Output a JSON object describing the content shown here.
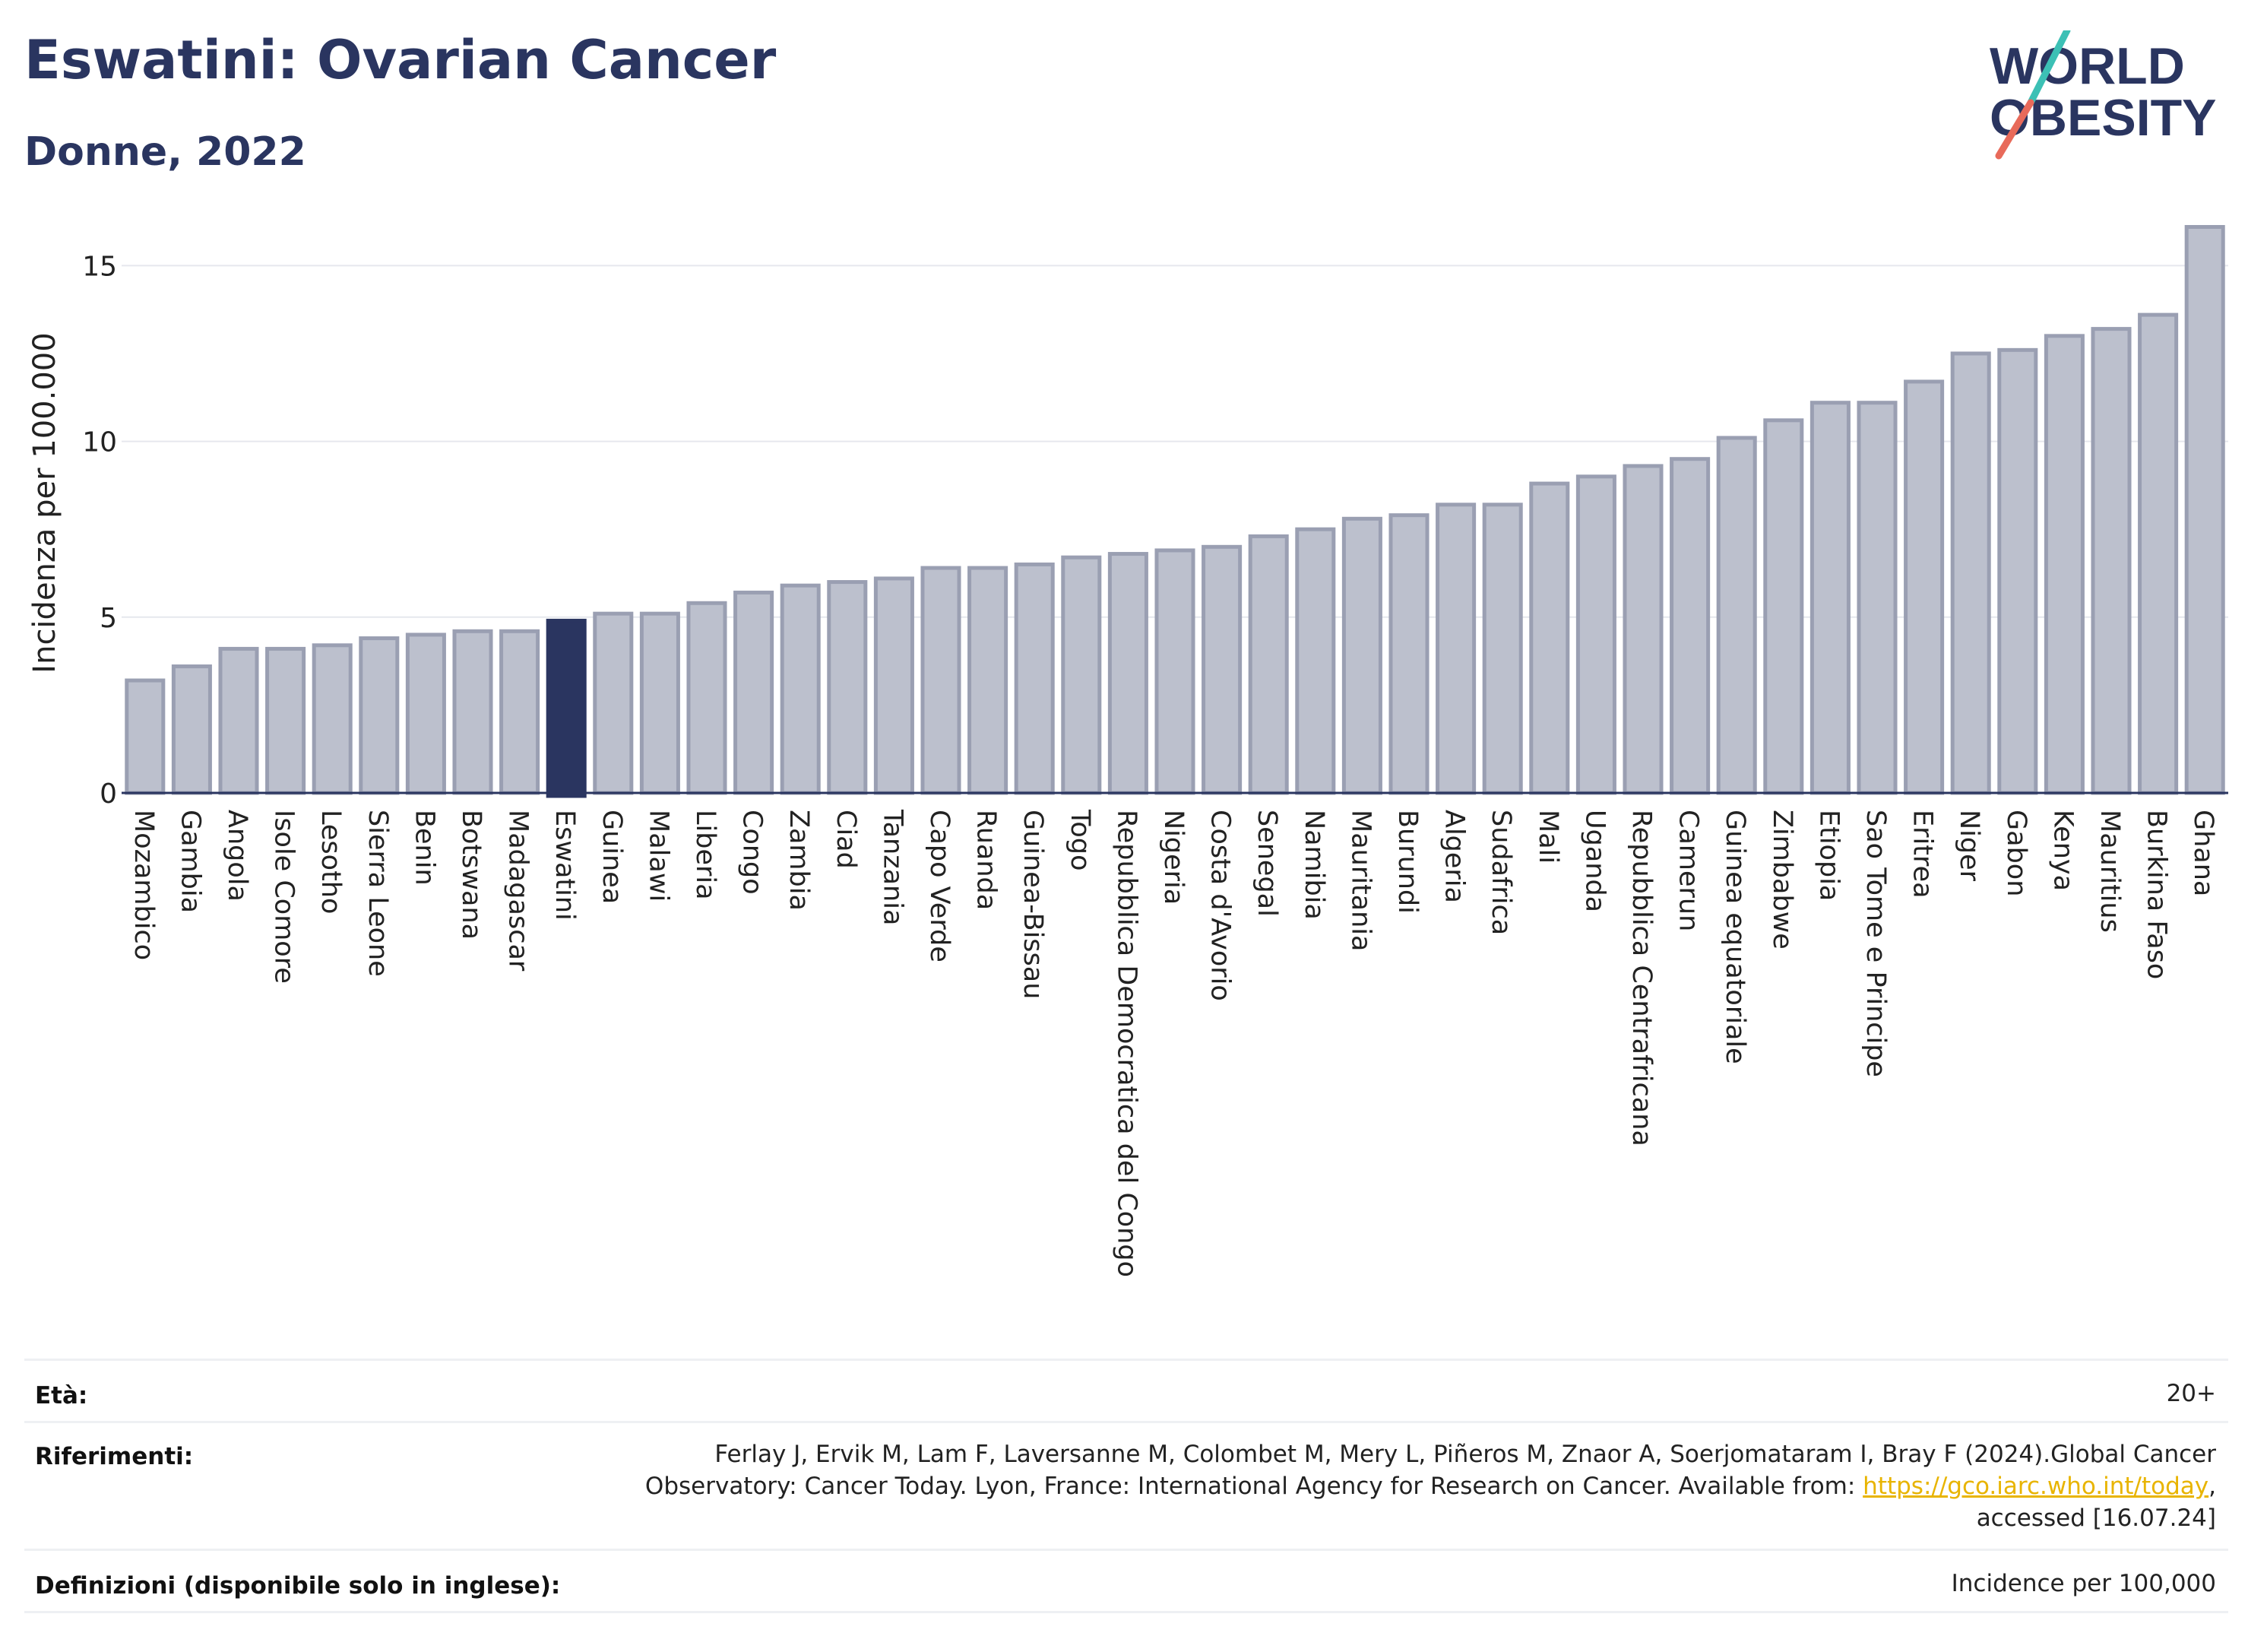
{
  "header": {
    "title": "Eswatini: Ovarian Cancer",
    "subtitle": "Donne, 2022",
    "logo_line1": "WORLD",
    "logo_line2": "OBESITY"
  },
  "colors": {
    "navy": "#2a3560",
    "bar_fill": "#bcc0cd",
    "bar_stroke": "#9a9fb2",
    "highlight": "#2a3560",
    "logo_teal": "#3cc0b5",
    "logo_coral": "#e86a5a",
    "link": "#e8b400"
  },
  "chart_data": {
    "type": "bar",
    "ylabel": "Incidenza per 100.000",
    "xlabel": "",
    "ylim": [
      0,
      16.5
    ],
    "yticks": [
      0,
      5,
      10,
      15
    ],
    "highlight": "Eswatini",
    "grid": true,
    "categories": [
      "Mozambico",
      "Gambia",
      "Angola",
      "Isole Comore",
      "Lesotho",
      "Sierra Leone",
      "Benin",
      "Botswana",
      "Madagascar",
      "Eswatini",
      "Guinea",
      "Malawi",
      "Liberia",
      "Congo",
      "Zambia",
      "Ciad",
      "Tanzania",
      "Capo Verde",
      "Ruanda",
      "Guinea-Bissau",
      "Togo",
      "Repubblica Democratica del Congo",
      "Nigeria",
      "Costa d'Avorio",
      "Senegal",
      "Namibia",
      "Mauritania",
      "Burundi",
      "Algeria",
      "Sudafrica",
      "Mali",
      "Uganda",
      "Repubblica Centrafricana",
      "Camerun",
      "Guinea equatoriale",
      "Zimbabwe",
      "Etiopia",
      "Sao Tome e Principe",
      "Eritrea",
      "Niger",
      "Gabon",
      "Kenya",
      "Mauritius",
      "Burkina Faso",
      "Ghana"
    ],
    "values": [
      3.2,
      3.6,
      4.1,
      4.1,
      4.2,
      4.4,
      4.5,
      4.6,
      4.6,
      4.9,
      5.1,
      5.1,
      5.4,
      5.7,
      5.9,
      6.0,
      6.1,
      6.4,
      6.4,
      6.5,
      6.7,
      6.8,
      6.9,
      7.0,
      7.3,
      7.5,
      7.8,
      7.9,
      8.2,
      8.2,
      8.8,
      9.0,
      9.3,
      9.5,
      10.1,
      10.6,
      11.1,
      11.1,
      11.7,
      12.5,
      12.6,
      13.0,
      13.2,
      13.6,
      16.1
    ]
  },
  "footer": {
    "age_label": "Età:",
    "age_value": "20+",
    "ref_label": "Riferimenti:",
    "ref_line1": "Ferlay J, Ervik M, Lam F, Laversanne M, Colombet M, Mery L, Piñeros M, Znaor A, Soerjomataram I, Bray F (2024).Global Cancer",
    "ref_line2_pre": "Observatory: Cancer Today. Lyon, France: International Agency for Research on Cancer. Available from: ",
    "ref_link": "https://gco.iarc.who.int/today",
    "ref_line2_post": ",",
    "ref_line3": "accessed [16.07.24]",
    "def_label": "Definizioni (disponibile solo in inglese):",
    "def_value": "Incidence per 100,000"
  }
}
